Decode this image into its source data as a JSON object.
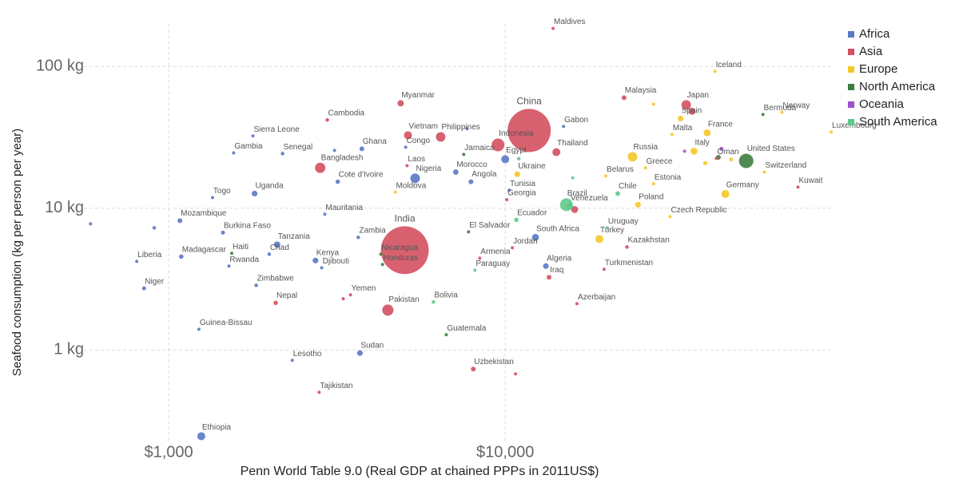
{
  "chart_data": {
    "type": "scatter",
    "x_label": "Penn World Table 9.0 (Real GDP at chained PPPs in 2011US$)",
    "y_label": "Seafood consumption (kg per person per year)",
    "x_log": true,
    "y_log": true,
    "grid": true,
    "legend": "top-right",
    "xlim": [
      560,
      94000
    ],
    "ylim": [
      0.22,
      200
    ],
    "xticks": [
      {
        "value": 1000,
        "label": "$1,000"
      },
      {
        "value": 10000,
        "label": "$10,000"
      }
    ],
    "yticks": [
      {
        "value": 1,
        "label": "1 kg"
      },
      {
        "value": 10,
        "label": "10 kg"
      },
      {
        "value": 100,
        "label": "100 kg"
      }
    ],
    "series": [
      {
        "name": "Africa",
        "color": "#5a78c4",
        "labels": [
          "Gabon",
          "Egypt",
          "Tunisia",
          "South Africa",
          "Algeria",
          "Sudan",
          "Zambia",
          "Nigeria",
          "Congo",
          "Morocco",
          "Angola",
          "Ghana",
          "Cote d'Ivoire",
          "Senegal",
          "Sierra Leone",
          "Gambia",
          "Uganda",
          "Togo",
          "Mauritania",
          "Mozambique",
          "Burkina Faso",
          "Tanzania",
          "Chad",
          "Rwanda",
          "Madagascar",
          "Liberia",
          "Niger",
          "Kenya",
          "Djibouti",
          "Zimbabwe",
          "Guinea-Bissau",
          "Lesotho",
          "Ethiopia",
          null,
          null,
          null
        ],
        "x": [
          14900,
          10000,
          10270,
          12300,
          13210,
          3700,
          3660,
          5400,
          5060,
          7130,
          7910,
          3750,
          3180,
          2180,
          1780,
          1560,
          1800,
          1350,
          2910,
          1080,
          1450,
          2100,
          1990,
          1510,
          1090,
          804,
          845,
          2730,
          2850,
          1820,
          1230,
          2330,
          1250,
          586,
          906,
          3110
        ],
        "values": [
          37.8,
          22.2,
          13.4,
          6.23,
          3.91,
          0.95,
          6.23,
          16.3,
          27.0,
          18.0,
          15.4,
          26.3,
          15.4,
          24.3,
          32.4,
          24.6,
          12.7,
          11.9,
          9.08,
          8.18,
          6.73,
          5.54,
          4.74,
          3.91,
          4.56,
          4.22,
          2.72,
          4.28,
          3.8,
          2.86,
          1.4,
          0.845,
          0.246,
          7.76,
          7.28,
          25.6
        ],
        "sizes": [
          4,
          39,
          6,
          30,
          20,
          20,
          8,
          56,
          6,
          18,
          14,
          14,
          12,
          8,
          6,
          4,
          20,
          6,
          4,
          14,
          10,
          25,
          8,
          6,
          12,
          4,
          10,
          20,
          4,
          8,
          4,
          4,
          39,
          4,
          8,
          4
        ]
      },
      {
        "name": "Asia",
        "color": "#d4505f",
        "labels": [
          "Maldives",
          "Kuwait",
          "Malaysia",
          "Japan",
          null,
          "Oman",
          "Thailand",
          "China",
          "Indonesia",
          "Georgia",
          "Kazakhstan",
          "Turkmenistan",
          "Jordan",
          "Armenia",
          "Iraq",
          "Azerbaijan",
          "Uzbekistan",
          "Pakistan",
          "India",
          "Yemen",
          "Vietnam",
          "Myanmar",
          "Philippines",
          "Laos",
          "Bangladesh",
          "Cambodia",
          "Nepal",
          "Tajikistan",
          null,
          null,
          null
        ],
        "x": [
          13870,
          74100,
          22550,
          34500,
          35900,
          42400,
          14190,
          11780,
          9520,
          10110,
          23000,
          19670,
          10500,
          8400,
          13500,
          16340,
          8040,
          4480,
          5030,
          3470,
          5140,
          4890,
          6430,
          5110,
          2820,
          2960,
          2080,
          2800,
          10730,
          3300,
          16080
        ],
        "values": [
          186,
          14.1,
          60.3,
          53.7,
          48.4,
          22.5,
          24.9,
          35.4,
          28.0,
          11.5,
          5.33,
          3.71,
          5.26,
          4.44,
          3.26,
          2.12,
          0.733,
          1.91,
          5.06,
          2.45,
          32.8,
          55.1,
          31.9,
          20.0,
          19.3,
          42.0,
          2.15,
          0.502,
          0.678,
          2.3,
          9.8
        ],
        "sizes": [
          4,
          4,
          14,
          56,
          30,
          6,
          39,
          1140,
          100,
          4,
          8,
          4,
          6,
          4,
          14,
          6,
          14,
          77,
          1400,
          4,
          39,
          25,
          56,
          4,
          66,
          8,
          12,
          4,
          4,
          4,
          30
        ]
      },
      {
        "name": "Europe",
        "color": "#f5c827",
        "labels": [
          "Iceland",
          "Norway",
          "Luxembourg",
          "Switzerland",
          "Spain",
          "Malta",
          "France",
          "Italy",
          "Germany",
          "Czech Republic",
          "Estonia",
          "Greece",
          "Russia",
          "Poland",
          "Belarus",
          "Ukraine",
          "Moldova",
          "Turkey",
          null,
          null,
          null
        ],
        "x": [
          42000,
          66400,
          93000,
          58900,
          33200,
          31300,
          39800,
          36400,
          45100,
          30900,
          27600,
          26100,
          23900,
          24800,
          19900,
          10860,
          4710,
          19040,
          46900,
          39300,
          27600
        ],
        "values": [
          92.5,
          47.7,
          34.5,
          18.0,
          43.0,
          33.2,
          34.1,
          25.3,
          12.6,
          8.73,
          14.9,
          19.3,
          23.1,
          10.6,
          16.9,
          17.4,
          13.0,
          6.07,
          22.1,
          20.8,
          54.3
        ],
        "sizes": [
          4,
          6,
          4,
          6,
          20,
          4,
          30,
          30,
          39,
          6,
          4,
          6,
          56,
          20,
          6,
          20,
          4,
          39,
          10,
          10,
          6
        ]
      },
      {
        "name": "North America",
        "color": "#3e7d3e",
        "labels": [
          "United States",
          "Bermuda",
          "El Salvador",
          "Nicaragua",
          "Honduras",
          "Guatemala",
          "Haiti",
          "Jamaica",
          null
        ],
        "x": [
          52000,
          58300,
          7780,
          4270,
          4320,
          6680,
          1540,
          7530,
          43000
        ],
        "values": [
          21.6,
          45.9,
          6.82,
          4.74,
          4.01,
          1.28,
          4.81,
          24.0,
          22.9
        ],
        "sizes": [
          127,
          4,
          4,
          4,
          4,
          6,
          6,
          4,
          14
        ]
      },
      {
        "name": "Oceania",
        "color": "#9c52c8",
        "labels": [
          null,
          null,
          null
        ],
        "x": [
          43900,
          34100,
          7700
        ],
        "values": [
          26.3,
          25.3,
          36.4
        ],
        "sizes": [
          10,
          4,
          4
        ]
      },
      {
        "name": "South America",
        "color": "#5ec98a",
        "labels": [
          "Brazil",
          "Venezuela",
          "Chile",
          "Ecuador",
          "Uruguay",
          "Paraguay",
          "Bolivia",
          null,
          null
        ],
        "x": [
          15200,
          15560,
          21600,
          10790,
          20100,
          8130,
          6120,
          15870,
          10970
        ],
        "values": [
          10.6,
          10.3,
          12.7,
          8.28,
          7.28,
          3.66,
          2.18,
          16.4,
          22.4
        ],
        "sizes": [
          100,
          25,
          14,
          12,
          4,
          6,
          8,
          4,
          8
        ]
      }
    ]
  }
}
